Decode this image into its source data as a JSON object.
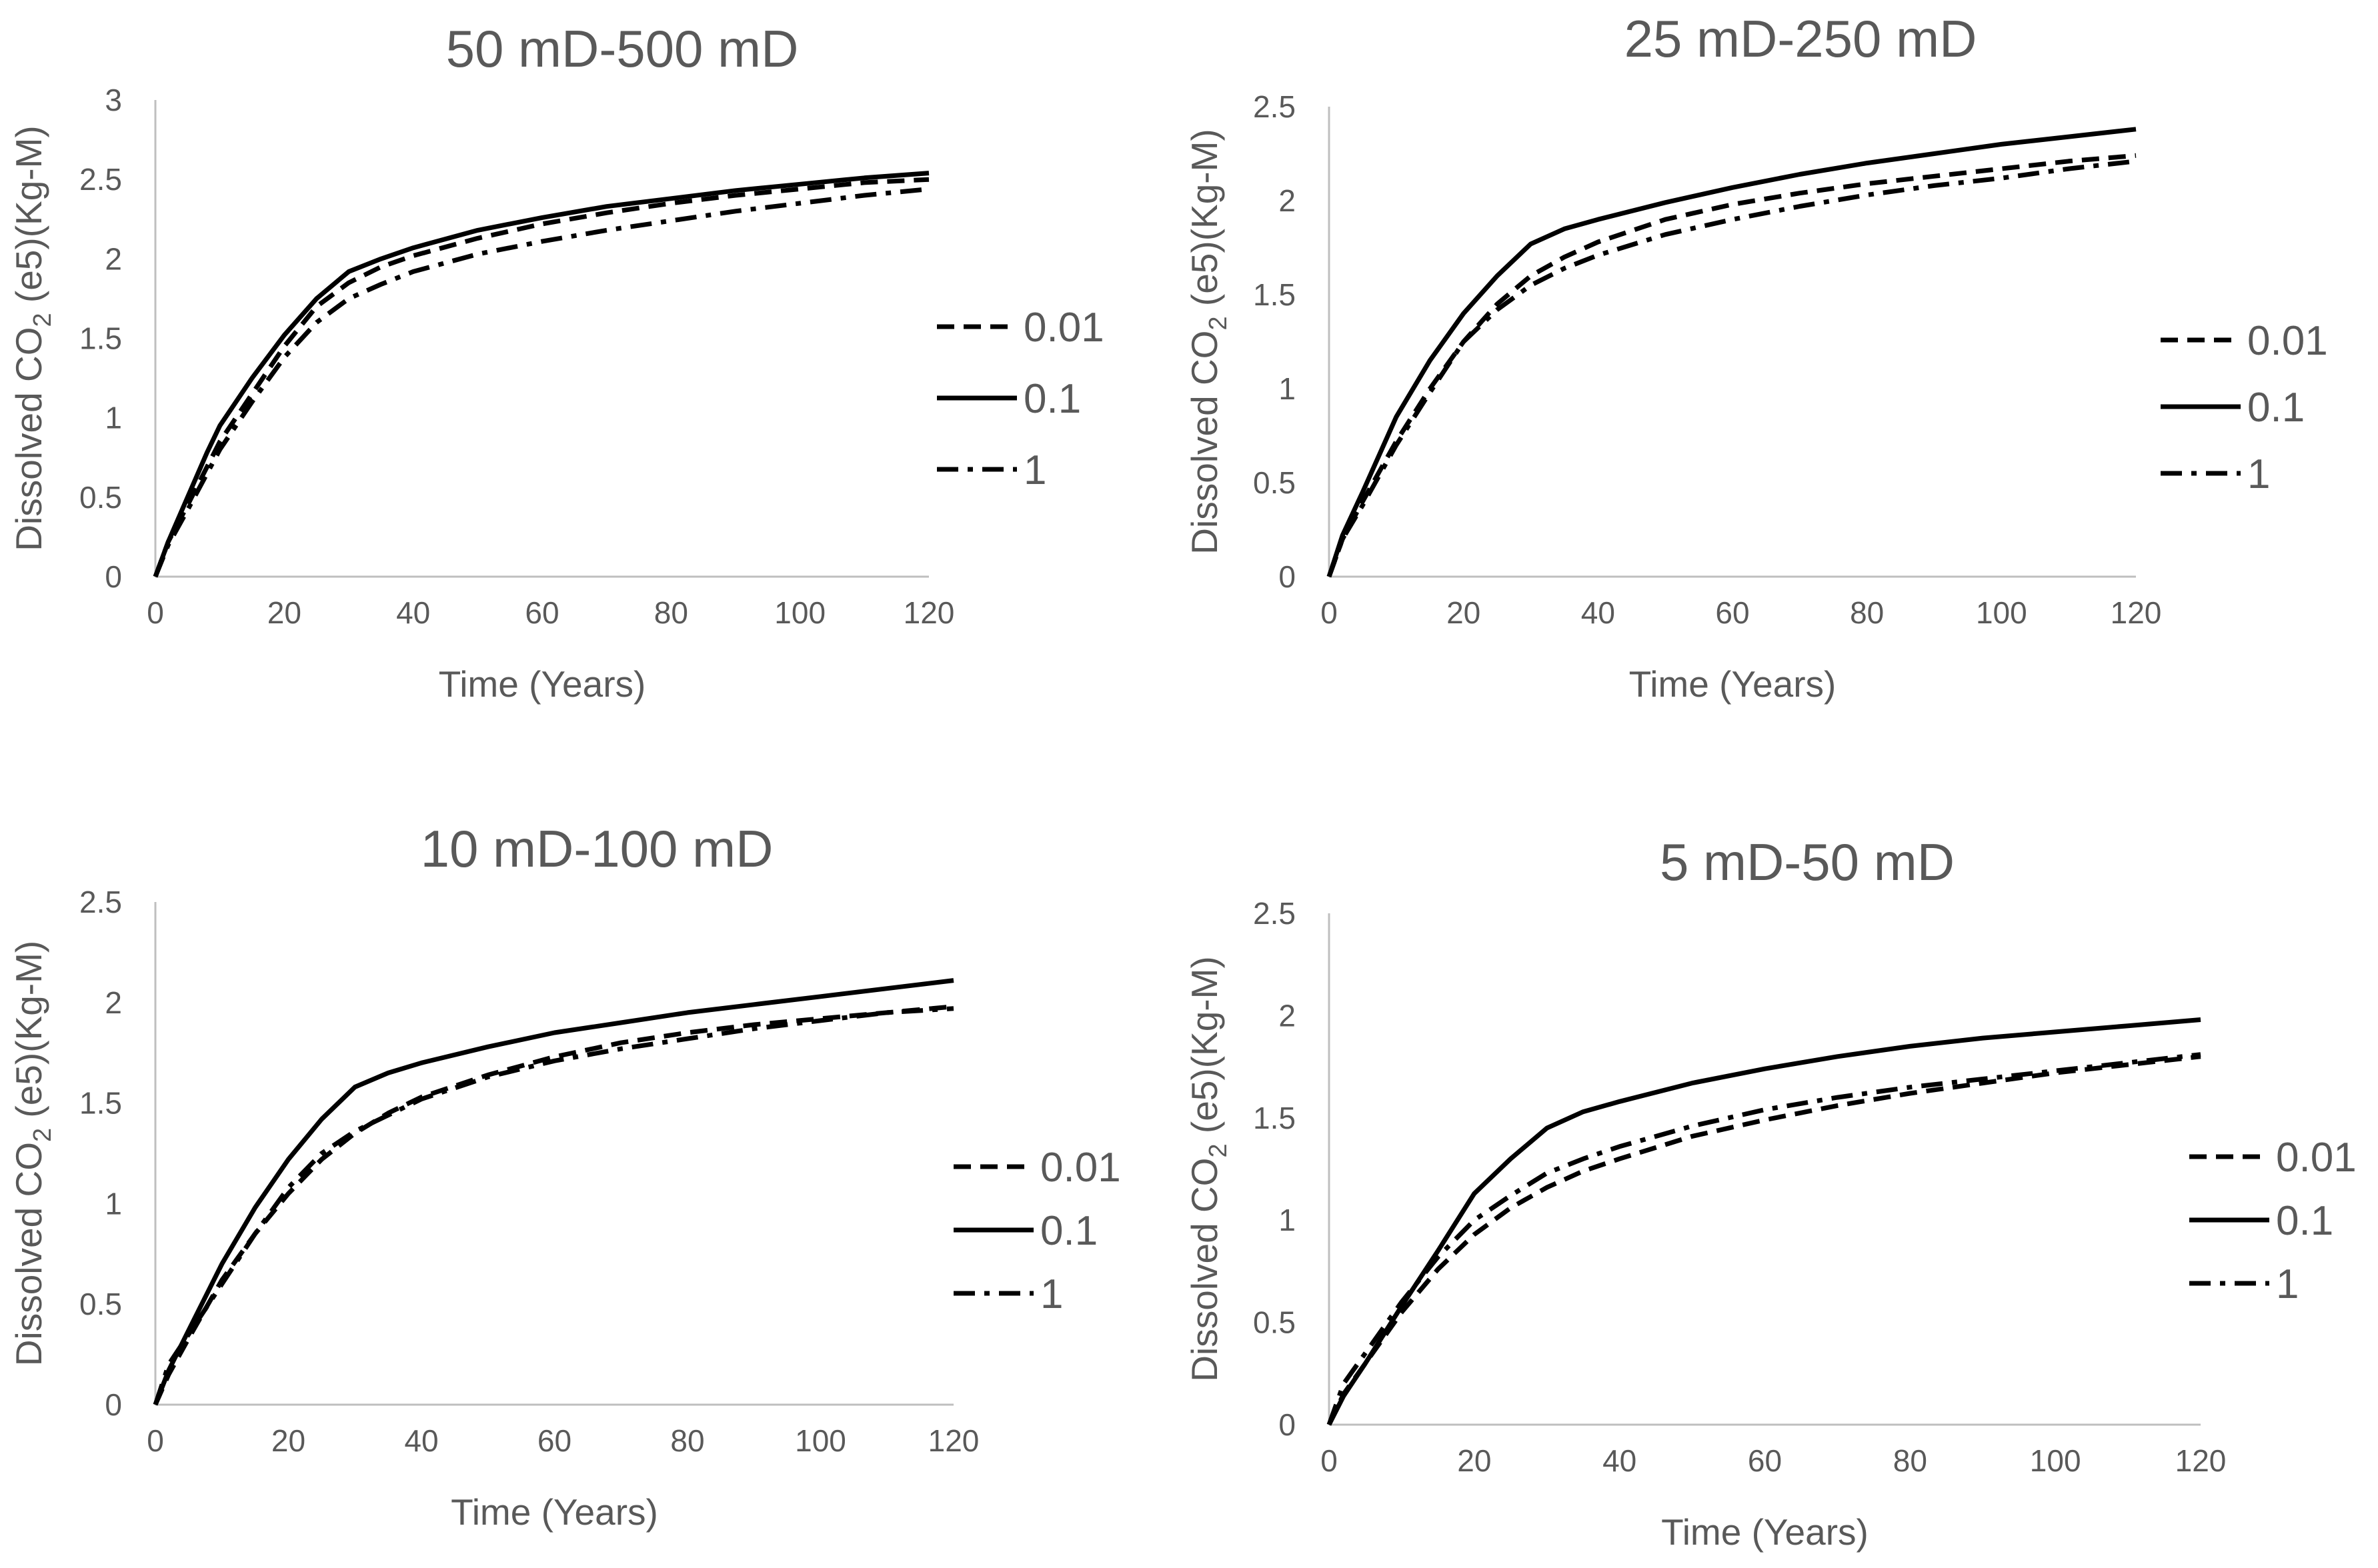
{
  "chart_data": [
    {
      "type": "line",
      "title": "50 mD-500 mD",
      "xlabel": "Time (Years)",
      "ylabel": "Dissolved CO2 (e5)(Kg-M)",
      "ylabel_main": "Dissolved CO",
      "ylabel_sub": "2",
      "ylabel_rest": " (e5)(Kg-M)",
      "xlim": [
        0,
        120
      ],
      "ylim": [
        0,
        3
      ],
      "xticks": [
        0,
        20,
        40,
        60,
        80,
        100,
        120
      ],
      "yticks": [
        0,
        0.5,
        1,
        1.5,
        2,
        2.5,
        3
      ],
      "yticklabels": [
        "0",
        "0.5",
        "1",
        "1.5",
        "2",
        "2.5",
        "3"
      ],
      "legend_position": "right",
      "series": [
        {
          "name": "0.01",
          "style": "dashed",
          "x": [
            0,
            2,
            5,
            10,
            15,
            20,
            25,
            30,
            35,
            40,
            50,
            60,
            70,
            80,
            90,
            100,
            110,
            120
          ],
          "y": [
            0,
            0.22,
            0.45,
            0.85,
            1.15,
            1.45,
            1.7,
            1.85,
            1.95,
            2.02,
            2.13,
            2.22,
            2.29,
            2.35,
            2.4,
            2.44,
            2.48,
            2.5
          ]
        },
        {
          "name": "0.1",
          "style": "solid",
          "x": [
            0,
            2,
            5,
            8,
            10,
            15,
            20,
            25,
            30,
            35,
            40,
            50,
            60,
            70,
            80,
            90,
            100,
            110,
            120
          ],
          "y": [
            0,
            0.22,
            0.5,
            0.78,
            0.95,
            1.25,
            1.52,
            1.75,
            1.92,
            2.0,
            2.07,
            2.18,
            2.26,
            2.33,
            2.38,
            2.43,
            2.47,
            2.51,
            2.54
          ]
        },
        {
          "name": "1",
          "style": "dashdot",
          "x": [
            0,
            2,
            5,
            10,
            15,
            20,
            25,
            30,
            35,
            40,
            50,
            60,
            70,
            80,
            90,
            100,
            110,
            120
          ],
          "y": [
            0,
            0.2,
            0.42,
            0.8,
            1.1,
            1.38,
            1.6,
            1.75,
            1.84,
            1.92,
            2.03,
            2.11,
            2.18,
            2.24,
            2.3,
            2.35,
            2.4,
            2.44
          ]
        }
      ]
    },
    {
      "type": "line",
      "title": "25 mD-250 mD",
      "xlabel": "Time (Years)",
      "ylabel": "Dissolved CO2 (e5)(Kg-M)",
      "ylabel_main": "Dissolved CO",
      "ylabel_sub": "2",
      "ylabel_rest": " (e5)(Kg-M)",
      "xlim": [
        0,
        120
      ],
      "ylim": [
        0,
        2.5
      ],
      "xticks": [
        0,
        20,
        40,
        60,
        80,
        100,
        120
      ],
      "yticks": [
        0,
        0.5,
        1,
        1.5,
        2,
        2.5
      ],
      "yticklabels": [
        "0",
        "0.5",
        "1",
        "1.5",
        "2",
        "2.5"
      ],
      "legend_position": "right",
      "series": [
        {
          "name": "0.01",
          "style": "dashed",
          "x": [
            0,
            2,
            5,
            10,
            15,
            20,
            25,
            30,
            35,
            40,
            50,
            60,
            70,
            80,
            90,
            100,
            110,
            120
          ],
          "y": [
            0,
            0.2,
            0.4,
            0.72,
            1.0,
            1.25,
            1.45,
            1.6,
            1.7,
            1.78,
            1.9,
            1.98,
            2.04,
            2.09,
            2.13,
            2.17,
            2.21,
            2.24
          ]
        },
        {
          "name": "0.1",
          "style": "solid",
          "x": [
            0,
            2,
            5,
            10,
            15,
            20,
            25,
            30,
            35,
            40,
            50,
            60,
            70,
            80,
            90,
            100,
            110,
            120
          ],
          "y": [
            0,
            0.22,
            0.45,
            0.85,
            1.15,
            1.4,
            1.6,
            1.77,
            1.85,
            1.9,
            1.99,
            2.07,
            2.14,
            2.2,
            2.25,
            2.3,
            2.34,
            2.38
          ]
        },
        {
          "name": "1",
          "style": "dashdot",
          "x": [
            0,
            2,
            5,
            10,
            15,
            20,
            25,
            30,
            35,
            40,
            50,
            60,
            70,
            80,
            90,
            100,
            110,
            120
          ],
          "y": [
            0,
            0.2,
            0.38,
            0.7,
            0.98,
            1.25,
            1.42,
            1.55,
            1.64,
            1.71,
            1.82,
            1.9,
            1.97,
            2.03,
            2.08,
            2.12,
            2.17,
            2.21
          ]
        }
      ]
    },
    {
      "type": "line",
      "title": "10 mD-100 mD",
      "xlabel": "Time (Years)",
      "ylabel": "Dissolved CO2 (e5)(Kg-M)",
      "ylabel_main": "Dissolved CO",
      "ylabel_sub": "2",
      "ylabel_rest": " (e5)(Kg-M)",
      "xlim": [
        0,
        120
      ],
      "ylim": [
        0,
        2.5
      ],
      "xticks": [
        0,
        20,
        40,
        60,
        80,
        100,
        120
      ],
      "yticks": [
        0,
        0.5,
        1,
        1.5,
        2,
        2.5
      ],
      "yticklabels": [
        "0",
        "0.5",
        "1",
        "1.5",
        "2",
        "2.5"
      ],
      "legend_position": "right",
      "series": [
        {
          "name": "0.01",
          "style": "dashed",
          "x": [
            0,
            2,
            5,
            10,
            15,
            20,
            25,
            30,
            35,
            40,
            50,
            60,
            70,
            80,
            90,
            100,
            110,
            120
          ],
          "y": [
            0,
            0.15,
            0.33,
            0.62,
            0.85,
            1.05,
            1.22,
            1.35,
            1.45,
            1.53,
            1.64,
            1.73,
            1.8,
            1.85,
            1.89,
            1.92,
            1.95,
            1.98
          ]
        },
        {
          "name": "0.1",
          "style": "solid",
          "x": [
            0,
            2,
            5,
            10,
            15,
            20,
            25,
            30,
            35,
            40,
            50,
            60,
            70,
            80,
            90,
            100,
            110,
            120
          ],
          "y": [
            0,
            0.17,
            0.37,
            0.7,
            0.98,
            1.22,
            1.42,
            1.58,
            1.65,
            1.7,
            1.78,
            1.85,
            1.9,
            1.95,
            1.99,
            2.03,
            2.07,
            2.11
          ]
        },
        {
          "name": "1",
          "style": "dashdot",
          "x": [
            0,
            2,
            5,
            10,
            15,
            20,
            25,
            30,
            35,
            40,
            50,
            60,
            70,
            80,
            90,
            100,
            110,
            120
          ],
          "y": [
            0,
            0.2,
            0.35,
            0.6,
            0.85,
            1.08,
            1.25,
            1.36,
            1.44,
            1.52,
            1.63,
            1.71,
            1.77,
            1.82,
            1.87,
            1.91,
            1.95,
            1.97
          ]
        }
      ]
    },
    {
      "type": "line",
      "title": "5 mD-50 mD",
      "xlabel": "Time (Years)",
      "ylabel": "Dissolved CO2 (e5)(Kg-M)",
      "ylabel_main": "Dissolved CO",
      "ylabel_sub": "2",
      "ylabel_rest": " (e5)(Kg-M)",
      "xlim": [
        0,
        120
      ],
      "ylim": [
        0,
        2.5
      ],
      "xticks": [
        0,
        20,
        40,
        60,
        80,
        100,
        120
      ],
      "yticks": [
        0,
        0.5,
        1,
        1.5,
        2,
        2.5
      ],
      "yticklabels": [
        "0",
        "0.5",
        "1",
        "1.5",
        "2",
        "2.5"
      ],
      "legend_position": "right",
      "series": [
        {
          "name": "0.01",
          "style": "dashed",
          "x": [
            0,
            2,
            5,
            10,
            15,
            20,
            25,
            30,
            35,
            40,
            50,
            60,
            70,
            80,
            90,
            100,
            110,
            120
          ],
          "y": [
            0,
            0.15,
            0.3,
            0.55,
            0.76,
            0.93,
            1.06,
            1.16,
            1.24,
            1.3,
            1.41,
            1.49,
            1.56,
            1.62,
            1.67,
            1.72,
            1.76,
            1.8
          ]
        },
        {
          "name": "0.1",
          "style": "solid",
          "x": [
            0,
            2,
            5,
            10,
            15,
            20,
            25,
            30,
            35,
            40,
            50,
            60,
            70,
            80,
            90,
            100,
            110,
            120
          ],
          "y": [
            0,
            0.14,
            0.3,
            0.58,
            0.85,
            1.13,
            1.3,
            1.45,
            1.53,
            1.58,
            1.67,
            1.74,
            1.8,
            1.85,
            1.89,
            1.92,
            1.95,
            1.98
          ]
        },
        {
          "name": "1",
          "style": "dashdot",
          "x": [
            0,
            2,
            5,
            10,
            15,
            20,
            25,
            30,
            35,
            40,
            50,
            60,
            70,
            80,
            90,
            100,
            110,
            120
          ],
          "y": [
            0,
            0.2,
            0.35,
            0.6,
            0.82,
            1.0,
            1.12,
            1.23,
            1.3,
            1.36,
            1.46,
            1.54,
            1.6,
            1.65,
            1.69,
            1.73,
            1.77,
            1.81
          ]
        }
      ]
    }
  ]
}
